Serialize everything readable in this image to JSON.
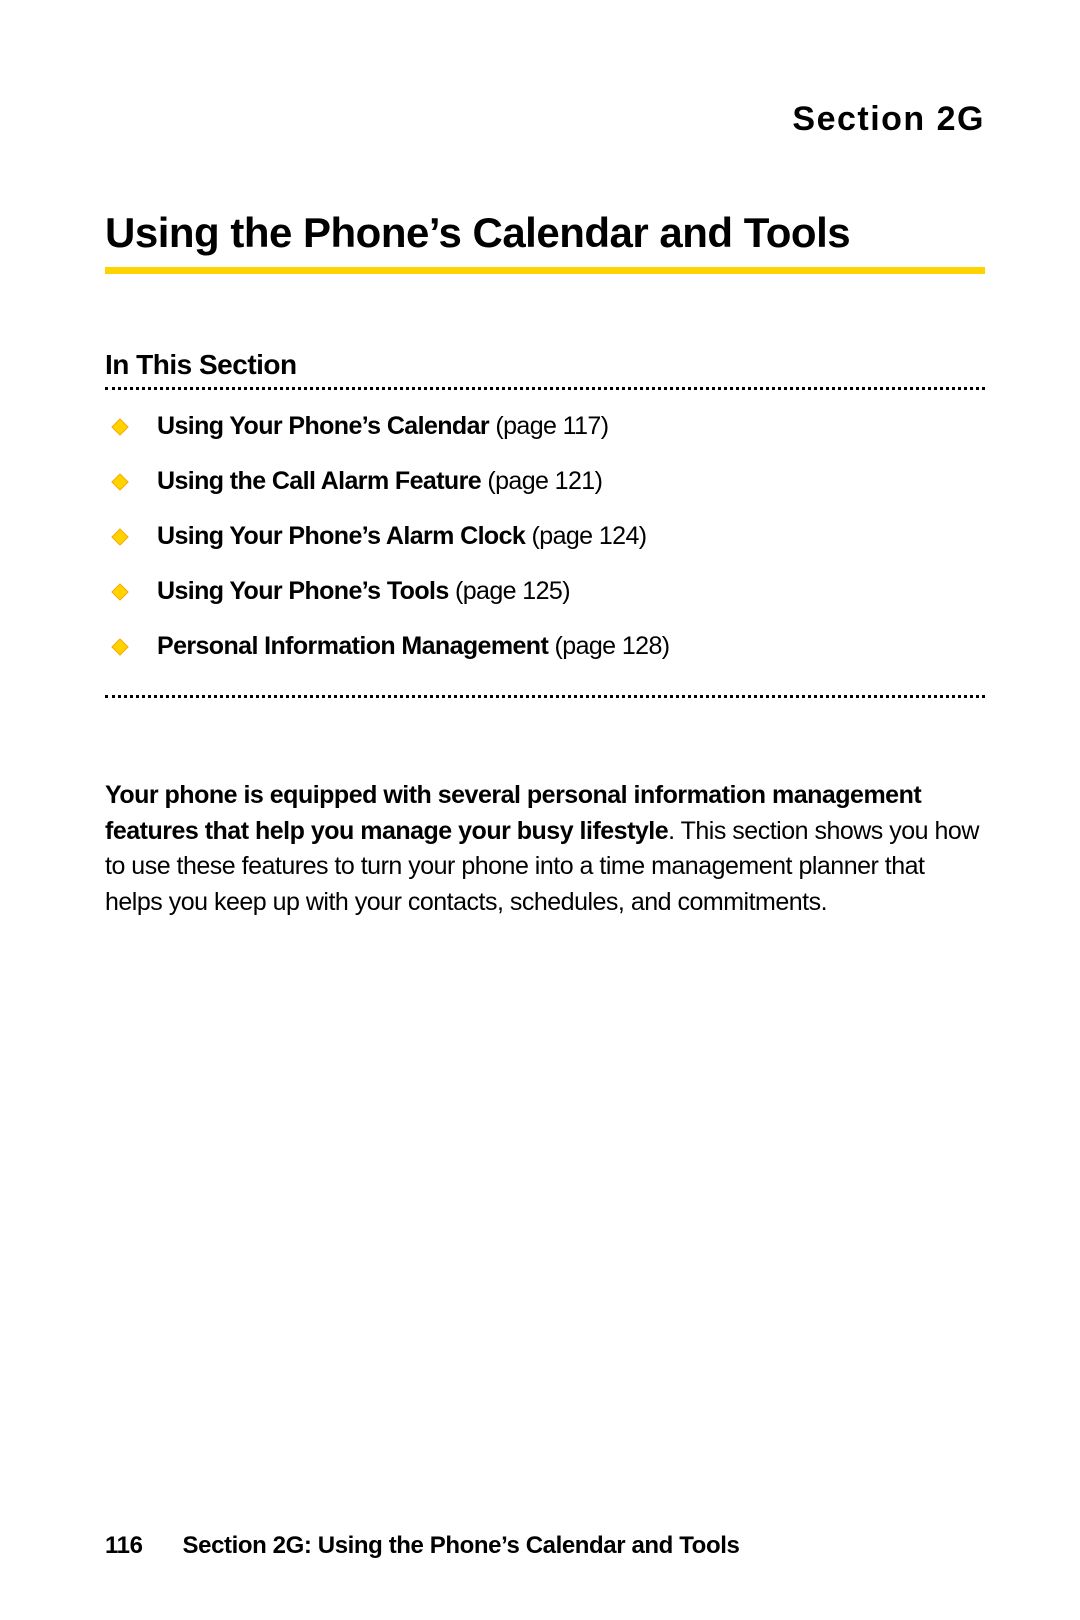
{
  "colors": {
    "accent_yellow": "#ffd200",
    "bullet_fill": "#ffd200",
    "bullet_stroke": "#f7a600",
    "text": "#000000",
    "background": "#ffffff"
  },
  "section_label": "Section 2G",
  "main_title": "Using the Phone’s Calendar and Tools",
  "subsection_title": "In This Section",
  "toc": [
    {
      "title": "Using Your Phone’s Calendar",
      "page_ref": " (page 117)"
    },
    {
      "title": "Using the Call Alarm Feature",
      "page_ref": " (page 121)"
    },
    {
      "title": "Using Your Phone’s Alarm Clock",
      "page_ref": " (page 124)"
    },
    {
      "title": "Using Your Phone’s Tools",
      "page_ref": " (page 125)"
    },
    {
      "title": "Personal Information Management",
      "page_ref": " (page 128)"
    }
  ],
  "body": {
    "bold_lead": "Your phone is equipped with several personal information management features that help you manage your busy lifestyle",
    "rest": ". This section shows you how to use these features to turn your phone into a time management planner that helps you keep up with your contacts, schedules, and commitments."
  },
  "footer": {
    "page_number": "116",
    "text": "Section 2G: Using the Phone’s Calendar and Tools"
  }
}
